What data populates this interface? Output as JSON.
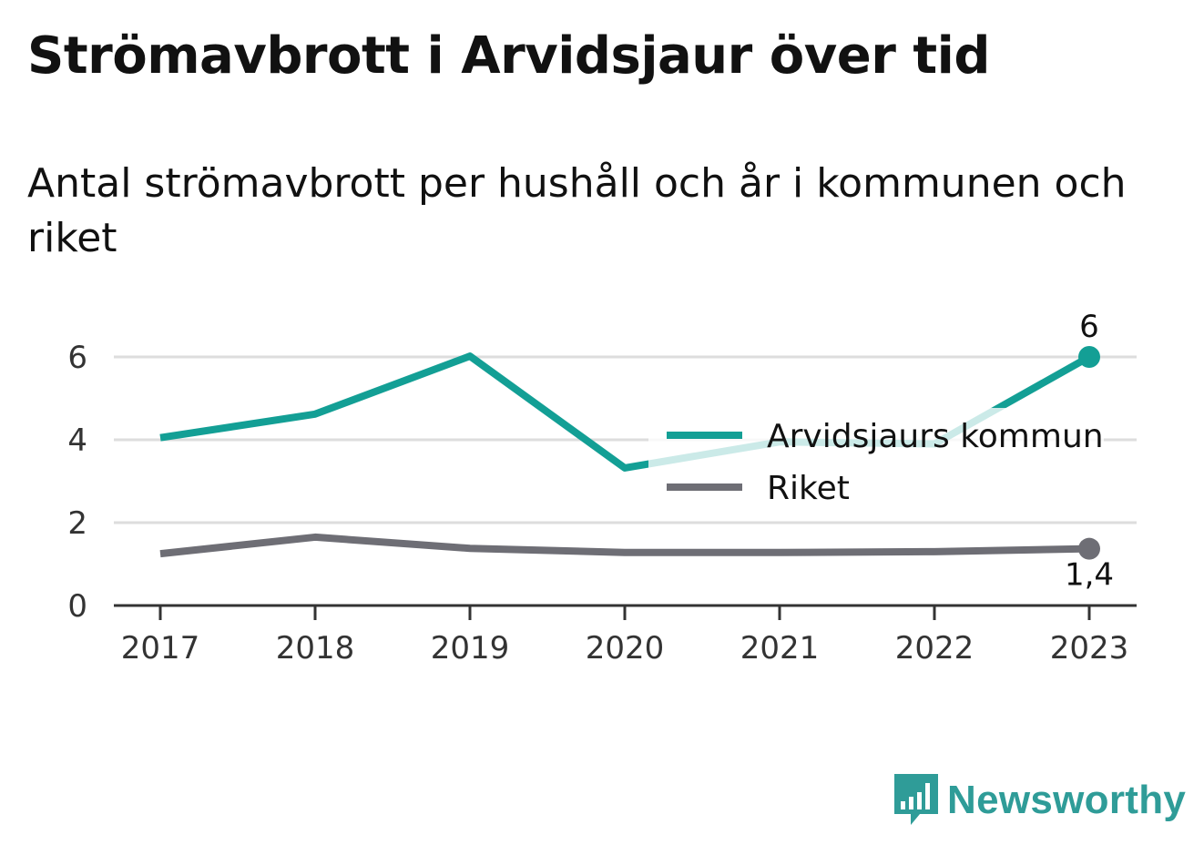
{
  "title": "Strömavbrott i Arvidsjaur över tid",
  "subtitle": "Antal strömavbrott per hushåll och år i kommunen och riket",
  "brand": {
    "name": "Newsworthy",
    "icon": "newsworthy-logo-icon",
    "color": "#2f9c98"
  },
  "chart_data": {
    "type": "line",
    "x": [
      "2017",
      "2018",
      "2019",
      "2020",
      "2021",
      "2022",
      "2023"
    ],
    "ylim": [
      0,
      7
    ],
    "yticks": [
      "0",
      "2",
      "4",
      "6"
    ],
    "grid": true,
    "legend_position": "right-center",
    "series": [
      {
        "name": "Arvidsjaurs kommun",
        "color": "#139f95",
        "values": [
          4.05,
          4.62,
          6.02,
          3.32,
          3.95,
          3.9,
          6.0
        ],
        "end_label": "6"
      },
      {
        "name": "Riket",
        "color": "#6e6e75",
        "values": [
          1.25,
          1.65,
          1.38,
          1.28,
          1.28,
          1.3,
          1.37
        ],
        "end_label": "1,4"
      }
    ]
  }
}
